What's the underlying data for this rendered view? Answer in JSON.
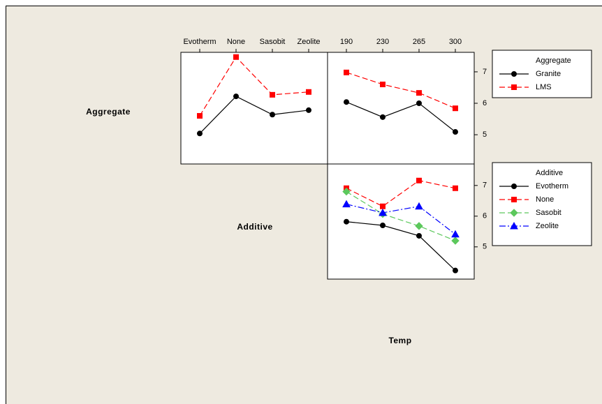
{
  "factor_labels": [
    "Aggregate",
    "Additive",
    "Temp"
  ],
  "chart_data": [
    {
      "type": "line",
      "categories": [
        "Evotherm",
        "None",
        "Sasobit",
        "Zeolite"
      ],
      "ylim": [
        4.07,
        7.62
      ],
      "series": [
        {
          "color": "#000000",
          "marker": "circle",
          "dash": "solid",
          "values": [
            5.04,
            6.22,
            5.64,
            5.78
          ]
        },
        {
          "color": "#ff0000",
          "marker": "square",
          "dash": "dashed",
          "values": [
            5.6,
            7.47,
            6.27,
            6.36
          ]
        }
      ]
    },
    {
      "type": "line",
      "categories": [
        "190",
        "230",
        "265",
        "300"
      ],
      "ylim": [
        4.07,
        7.62
      ],
      "yticks": [
        5,
        6,
        7
      ],
      "legend_title": "Aggregate",
      "series": [
        {
          "name": "Granite",
          "color": "#000000",
          "marker": "circle",
          "dash": "solid",
          "values": [
            6.04,
            5.56,
            6.0,
            5.09
          ]
        },
        {
          "name": "LMS",
          "color": "#ff0000",
          "marker": "square",
          "dash": "dashed",
          "values": [
            6.98,
            6.6,
            6.33,
            5.84
          ]
        }
      ]
    },
    {
      "type": "line",
      "ylim": [
        3.95,
        7.7
      ],
      "yticks": [
        5,
        6,
        7
      ],
      "legend_title": "Additive",
      "series": [
        {
          "name": "Evotherm",
          "color": "#000000",
          "marker": "circle",
          "dash": "solid",
          "values": [
            5.82,
            5.7,
            5.36,
            4.23
          ]
        },
        {
          "name": "None",
          "color": "#ff0000",
          "marker": "square",
          "dash": "dashed",
          "values": [
            6.91,
            6.32,
            7.16,
            6.91
          ]
        },
        {
          "name": "Sasobit",
          "color": "#5cc85c",
          "marker": "diamond",
          "dash": "dashed",
          "values": [
            6.8,
            6.07,
            5.68,
            5.2
          ]
        },
        {
          "name": "Zeolite",
          "color": "#0000ff",
          "marker": "triangle",
          "dash": "dashdot",
          "values": [
            6.39,
            6.11,
            6.32,
            5.41
          ]
        }
      ]
    }
  ]
}
